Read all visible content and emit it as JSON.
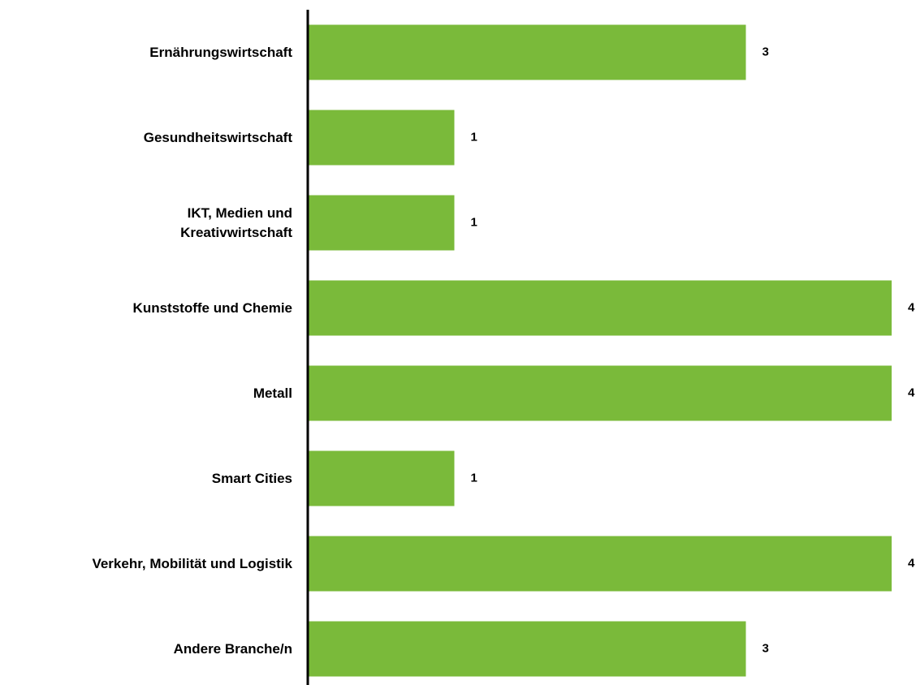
{
  "chart_data": {
    "type": "hbar",
    "categories": [
      "Ernährungswirtschaft",
      "Gesundheitswirtschaft",
      "IKT, Medien und\nKreativwirtschaft",
      "Kunststoffe und Chemie",
      "Metall",
      "Smart Cities",
      "Verkehr, Mobilität und Logistik",
      "Andere Branche/n"
    ],
    "values": [
      3,
      1,
      1,
      4,
      4,
      1,
      4,
      3
    ],
    "color": "#7aba3a",
    "xlim": [
      0,
      4
    ]
  }
}
